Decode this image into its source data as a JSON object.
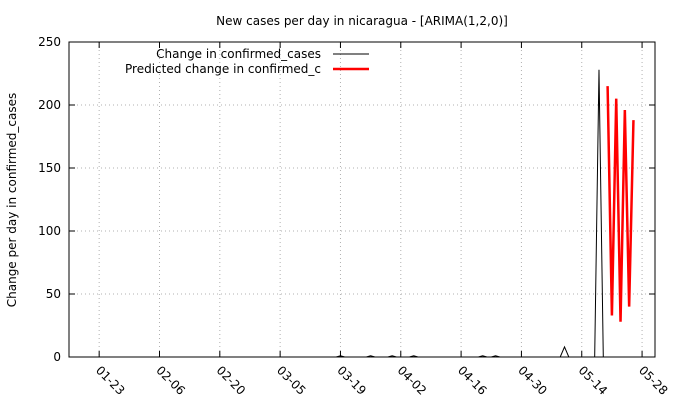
{
  "chart_data": {
    "type": "line",
    "title": "New cases per day in nicaragua -  [ARIMA(1,2,0)]",
    "xlabel": "",
    "ylabel": "Change per day in confirmed_cases",
    "xlim": [
      "2020-01-16",
      "2020-05-31"
    ],
    "ylim": [
      0,
      250
    ],
    "yticks": [
      0,
      50,
      100,
      150,
      200,
      250
    ],
    "xticks": [
      "01-23",
      "02-06",
      "02-20",
      "03-05",
      "03-19",
      "04-02",
      "04-16",
      "04-30",
      "05-14",
      "05-28"
    ],
    "xtick_dates": [
      "2020-01-23",
      "2020-02-06",
      "2020-02-20",
      "2020-03-05",
      "2020-03-19",
      "2020-04-02",
      "2020-04-16",
      "2020-04-30",
      "2020-05-14",
      "2020-05-28"
    ],
    "grid": true,
    "legend_position": "top-center",
    "series": [
      {
        "name": "Change in confirmed_cases",
        "color": "#000000",
        "points": [
          [
            "2020-03-18",
            0
          ],
          [
            "2020-03-19",
            1
          ],
          [
            "2020-03-20",
            0
          ],
          [
            "2020-03-21",
            0
          ],
          [
            "2020-03-22",
            0
          ],
          [
            "2020-03-23",
            0
          ],
          [
            "2020-03-24",
            0
          ],
          [
            "2020-03-25",
            0
          ],
          [
            "2020-03-26",
            1
          ],
          [
            "2020-03-27",
            0
          ],
          [
            "2020-03-28",
            0
          ],
          [
            "2020-03-29",
            0
          ],
          [
            "2020-03-30",
            0
          ],
          [
            "2020-03-31",
            1
          ],
          [
            "2020-04-01",
            0
          ],
          [
            "2020-04-02",
            0
          ],
          [
            "2020-04-03",
            0
          ],
          [
            "2020-04-04",
            0
          ],
          [
            "2020-04-05",
            1
          ],
          [
            "2020-04-06",
            0
          ],
          [
            "2020-04-07",
            0
          ],
          [
            "2020-04-08",
            0
          ],
          [
            "2020-04-09",
            0
          ],
          [
            "2020-04-10",
            0
          ],
          [
            "2020-04-11",
            0
          ],
          [
            "2020-04-12",
            0
          ],
          [
            "2020-04-13",
            0
          ],
          [
            "2020-04-14",
            0
          ],
          [
            "2020-04-15",
            0
          ],
          [
            "2020-04-16",
            0
          ],
          [
            "2020-04-17",
            0
          ],
          [
            "2020-04-18",
            0
          ],
          [
            "2020-04-19",
            0
          ],
          [
            "2020-04-20",
            0
          ],
          [
            "2020-04-21",
            1
          ],
          [
            "2020-04-22",
            0
          ],
          [
            "2020-04-23",
            0
          ],
          [
            "2020-04-24",
            1
          ],
          [
            "2020-04-25",
            0
          ],
          [
            "2020-04-26",
            0
          ],
          [
            "2020-04-27",
            0
          ],
          [
            "2020-04-28",
            0
          ],
          [
            "2020-04-29",
            0
          ],
          [
            "2020-04-30",
            0
          ],
          [
            "2020-05-01",
            0
          ],
          [
            "2020-05-02",
            0
          ],
          [
            "2020-05-03",
            0
          ],
          [
            "2020-05-04",
            0
          ],
          [
            "2020-05-05",
            0
          ],
          [
            "2020-05-06",
            0
          ],
          [
            "2020-05-07",
            0
          ],
          [
            "2020-05-08",
            0
          ],
          [
            "2020-05-09",
            0
          ],
          [
            "2020-05-10",
            8
          ],
          [
            "2020-05-11",
            0
          ],
          [
            "2020-05-12",
            0
          ],
          [
            "2020-05-13",
            0
          ],
          [
            "2020-05-14",
            0
          ],
          [
            "2020-05-15",
            0
          ],
          [
            "2020-05-16",
            0
          ],
          [
            "2020-05-17",
            0
          ],
          [
            "2020-05-18",
            228
          ],
          [
            "2020-05-19",
            0
          ]
        ]
      },
      {
        "name": "Predicted change in confirmed_c",
        "color": "#ff0000",
        "points": [
          [
            "2020-05-20",
            215
          ],
          [
            "2020-05-21",
            33
          ],
          [
            "2020-05-22",
            205
          ],
          [
            "2020-05-23",
            28
          ],
          [
            "2020-05-24",
            196
          ],
          [
            "2020-05-25",
            40
          ],
          [
            "2020-05-26",
            188
          ]
        ]
      }
    ]
  }
}
